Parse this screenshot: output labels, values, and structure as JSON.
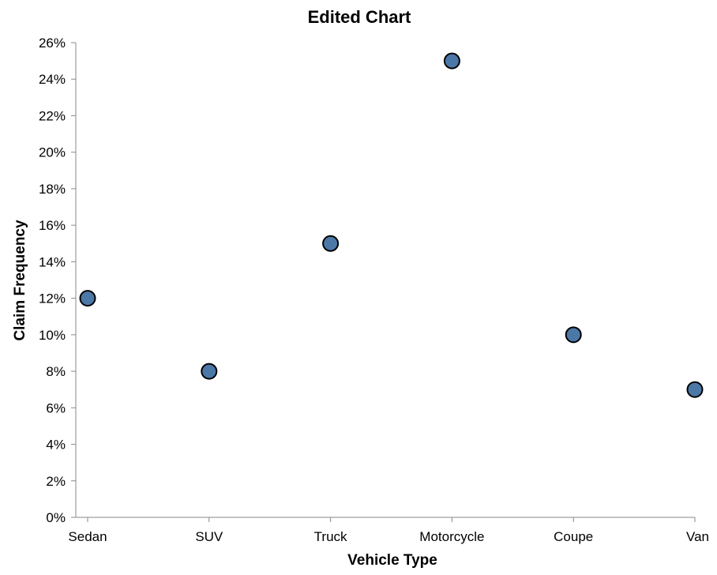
{
  "chart_data": {
    "type": "scatter",
    "title": "Edited Chart",
    "xlabel": "Vehicle Type",
    "ylabel": "Claim Frequency",
    "categories": [
      "Sedan",
      "SUV",
      "Truck",
      "Motorcycle",
      "Coupe",
      "Van"
    ],
    "values": [
      0.12,
      0.08,
      0.15,
      0.25,
      0.1,
      0.07
    ],
    "ylim": [
      0,
      0.26
    ],
    "yticks": [
      "0%",
      "2%",
      "4%",
      "6%",
      "8%",
      "10%",
      "12%",
      "14%",
      "16%",
      "18%",
      "20%",
      "22%",
      "24%",
      "26%"
    ],
    "grid": false,
    "legend": "none",
    "colors": {
      "point_fill": "#4c78a8",
      "point_stroke": "#000000",
      "axis": "#888888"
    }
  }
}
